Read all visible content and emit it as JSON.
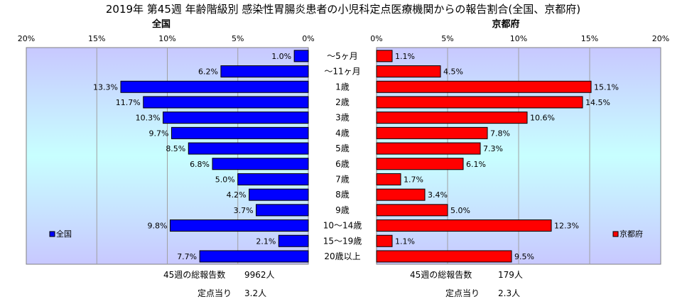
{
  "title": "2019年 第45週 年齢階級別 感染性胃腸炎患者の小児科定点医療機関からの報告割合(全国、京都府)",
  "colors": {
    "left_bar": "#0000ff",
    "right_bar": "#ff0000",
    "bar_edge": "#000000",
    "plot_top": "#c8c8ff",
    "plot_mid": "#c8ffff"
  },
  "chart_data": {
    "type": "bar",
    "orientation": "horizontal-pyramid",
    "categories": [
      "～5ヶ月",
      "～11ヶ月",
      "1歳",
      "2歳",
      "3歳",
      "4歳",
      "5歳",
      "6歳",
      "7歳",
      "8歳",
      "9歳",
      "10～14歳",
      "15～19歳",
      "20歳以上"
    ],
    "left": {
      "panel_title": "全国",
      "legend": "全国",
      "values": [
        1.0,
        6.2,
        13.3,
        11.7,
        10.3,
        9.7,
        8.5,
        6.8,
        5.0,
        4.2,
        3.7,
        9.8,
        2.1,
        7.7
      ],
      "labels": [
        "1.0%",
        "6.2%",
        "13.3%",
        "11.7%",
        "10.3%",
        "9.7%",
        "8.5%",
        "6.8%",
        "5.0%",
        "4.2%",
        "3.7%",
        "9.8%",
        "2.1%",
        "7.7%"
      ],
      "ticks": [
        "20%",
        "15%",
        "10%",
        "5%",
        "0%"
      ],
      "xlim": [
        0,
        20
      ],
      "total_label": "45週の総報告数",
      "total_value": "9962人",
      "per_site_label": "定点当り",
      "per_site_value": "3.2人"
    },
    "right": {
      "panel_title": "京都府",
      "legend": "京都府",
      "values": [
        1.1,
        4.5,
        15.1,
        14.5,
        10.6,
        7.8,
        7.3,
        6.1,
        1.7,
        3.4,
        5.0,
        12.3,
        1.1,
        9.5
      ],
      "labels": [
        "1.1%",
        "4.5%",
        "15.1%",
        "14.5%",
        "10.6%",
        "7.8%",
        "7.3%",
        "6.1%",
        "1.7%",
        "3.4%",
        "5.0%",
        "12.3%",
        "1.1%",
        "9.5%"
      ],
      "ticks": [
        "0%",
        "5%",
        "10%",
        "15%",
        "20%"
      ],
      "xlim": [
        0,
        20
      ],
      "total_label": "45週の総報告数",
      "total_value": "179人",
      "per_site_label": "定点当り",
      "per_site_value": "2.3人"
    },
    "grid": true
  }
}
